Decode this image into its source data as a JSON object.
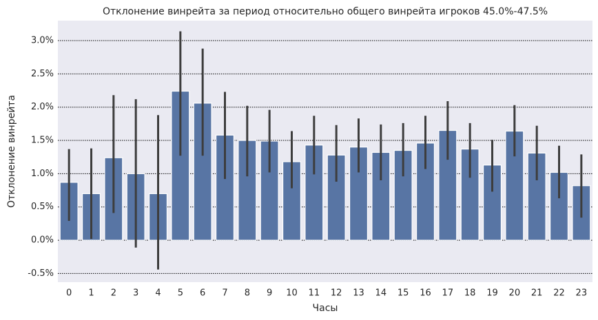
{
  "chart_data": {
    "type": "bar",
    "title": "Отклонение винрейта за период относительно общего винрейта игроков 45.0%-47.5%",
    "x_label": "Часы",
    "y_label": "Отклонение винрейта",
    "categories": [
      "0",
      "1",
      "2",
      "3",
      "4",
      "5",
      "6",
      "7",
      "8",
      "9",
      "10",
      "11",
      "12",
      "13",
      "14",
      "15",
      "16",
      "17",
      "18",
      "19",
      "20",
      "21",
      "22",
      "23"
    ],
    "values": [
      0.87,
      0.7,
      1.24,
      1.0,
      0.7,
      2.24,
      2.06,
      1.58,
      1.5,
      1.49,
      1.18,
      1.43,
      1.28,
      1.4,
      1.32,
      1.35,
      1.46,
      1.65,
      1.37,
      1.13,
      1.64,
      1.31,
      1.02,
      0.82
    ],
    "ci_low": [
      0.29,
      0.02,
      0.41,
      -0.11,
      -0.44,
      1.27,
      1.27,
      0.92,
      0.96,
      1.02,
      0.78,
      0.99,
      0.88,
      1.02,
      0.9,
      0.96,
      1.07,
      1.21,
      0.94,
      0.73,
      1.26,
      0.9,
      0.63,
      0.34
    ],
    "ci_high": [
      1.37,
      1.38,
      2.18,
      2.12,
      1.88,
      3.14,
      2.88,
      2.23,
      2.02,
      1.96,
      1.64,
      1.87,
      1.73,
      1.83,
      1.74,
      1.76,
      1.87,
      2.09,
      1.76,
      1.51,
      2.03,
      1.72,
      1.42,
      1.29
    ],
    "color": "#5875a4",
    "error_color": "#3d3d3d",
    "ylim": [
      -0.63,
      3.3
    ],
    "yticks": [
      {
        "value": -0.5,
        "label": "-0.5%"
      },
      {
        "value": 0,
        "label": "0.0%"
      },
      {
        "value": 0.5,
        "label": "0.5%"
      },
      {
        "value": 1,
        "label": "1.0%"
      },
      {
        "value": 1.5,
        "label": "1.5%"
      },
      {
        "value": 2,
        "label": "2.0%"
      },
      {
        "value": 2.5,
        "label": "2.5%"
      },
      {
        "value": 3,
        "label": "3.0%"
      }
    ],
    "grid": true
  }
}
